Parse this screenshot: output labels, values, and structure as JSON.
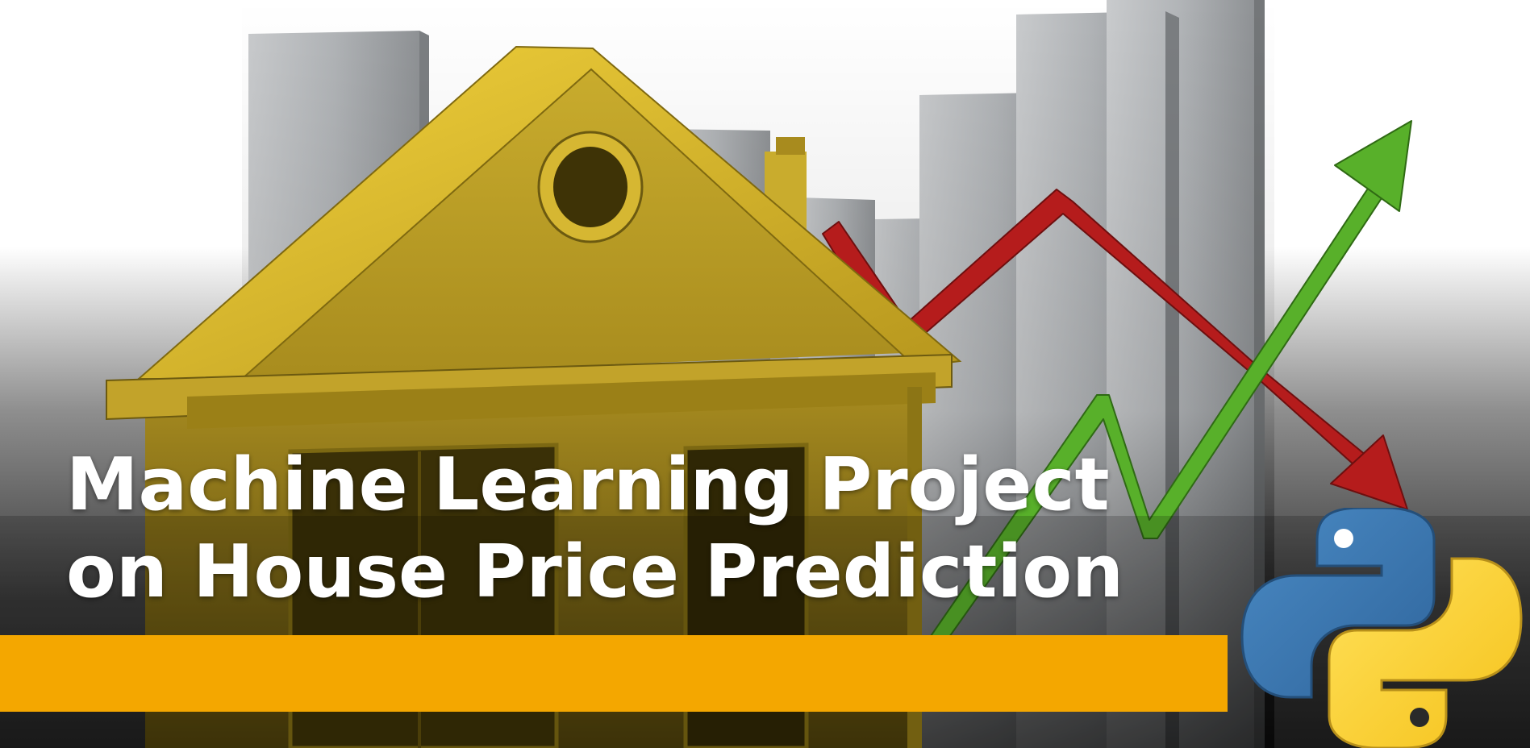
{
  "title": {
    "line1": "Machine Learning Project",
    "line2": "on House Price Prediction"
  },
  "colors": {
    "banner": "#f4a700",
    "house": "#c8a72a",
    "trend_down": "#b31b1b",
    "trend_up": "#5fbf2a",
    "python_blue": "#3c78b4",
    "python_yellow": "#ffd43b",
    "bars": "#a9acaf"
  },
  "icons": {
    "house": "house-icon",
    "python": "python-logo-icon",
    "down_arrow": "red-down-arrow-icon",
    "up_arrow": "green-up-arrow-icon"
  }
}
